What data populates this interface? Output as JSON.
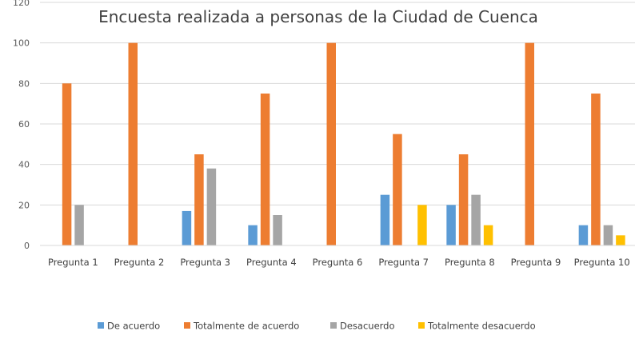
{
  "chart_data": {
    "type": "bar",
    "title": "Encuesta realizada a personas de la Ciudad de Cuenca",
    "xlabel": "",
    "ylabel": "",
    "ylim": [
      0,
      120
    ],
    "yticks": [
      0,
      20,
      40,
      60,
      80,
      100,
      120
    ],
    "grid": true,
    "legend_position": "bottom",
    "categories": [
      "Pregunta 1",
      "Pregunta 2",
      "Pregunta 3",
      "Pregunta 4",
      "Pregunta 6",
      "Pregunta 7",
      "Pregunta 8",
      "Pregunta 9",
      "Pregunta 10"
    ],
    "series": [
      {
        "name": "De acuerdo",
        "color": "#5b9bd5",
        "values": [
          0,
          0,
          17,
          10,
          0,
          25,
          20,
          0,
          10
        ]
      },
      {
        "name": "Totalmente de acuerdo",
        "color": "#ed7d31",
        "values": [
          80,
          100,
          45,
          75,
          100,
          55,
          45,
          100,
          75
        ]
      },
      {
        "name": "Desacuerdo",
        "color": "#a5a5a5",
        "values": [
          20,
          0,
          38,
          15,
          0,
          0,
          25,
          0,
          10
        ]
      },
      {
        "name": "Totalmente desacuerdo",
        "color": "#ffc000",
        "values": [
          0,
          0,
          0,
          0,
          0,
          20,
          10,
          0,
          5
        ]
      }
    ]
  }
}
